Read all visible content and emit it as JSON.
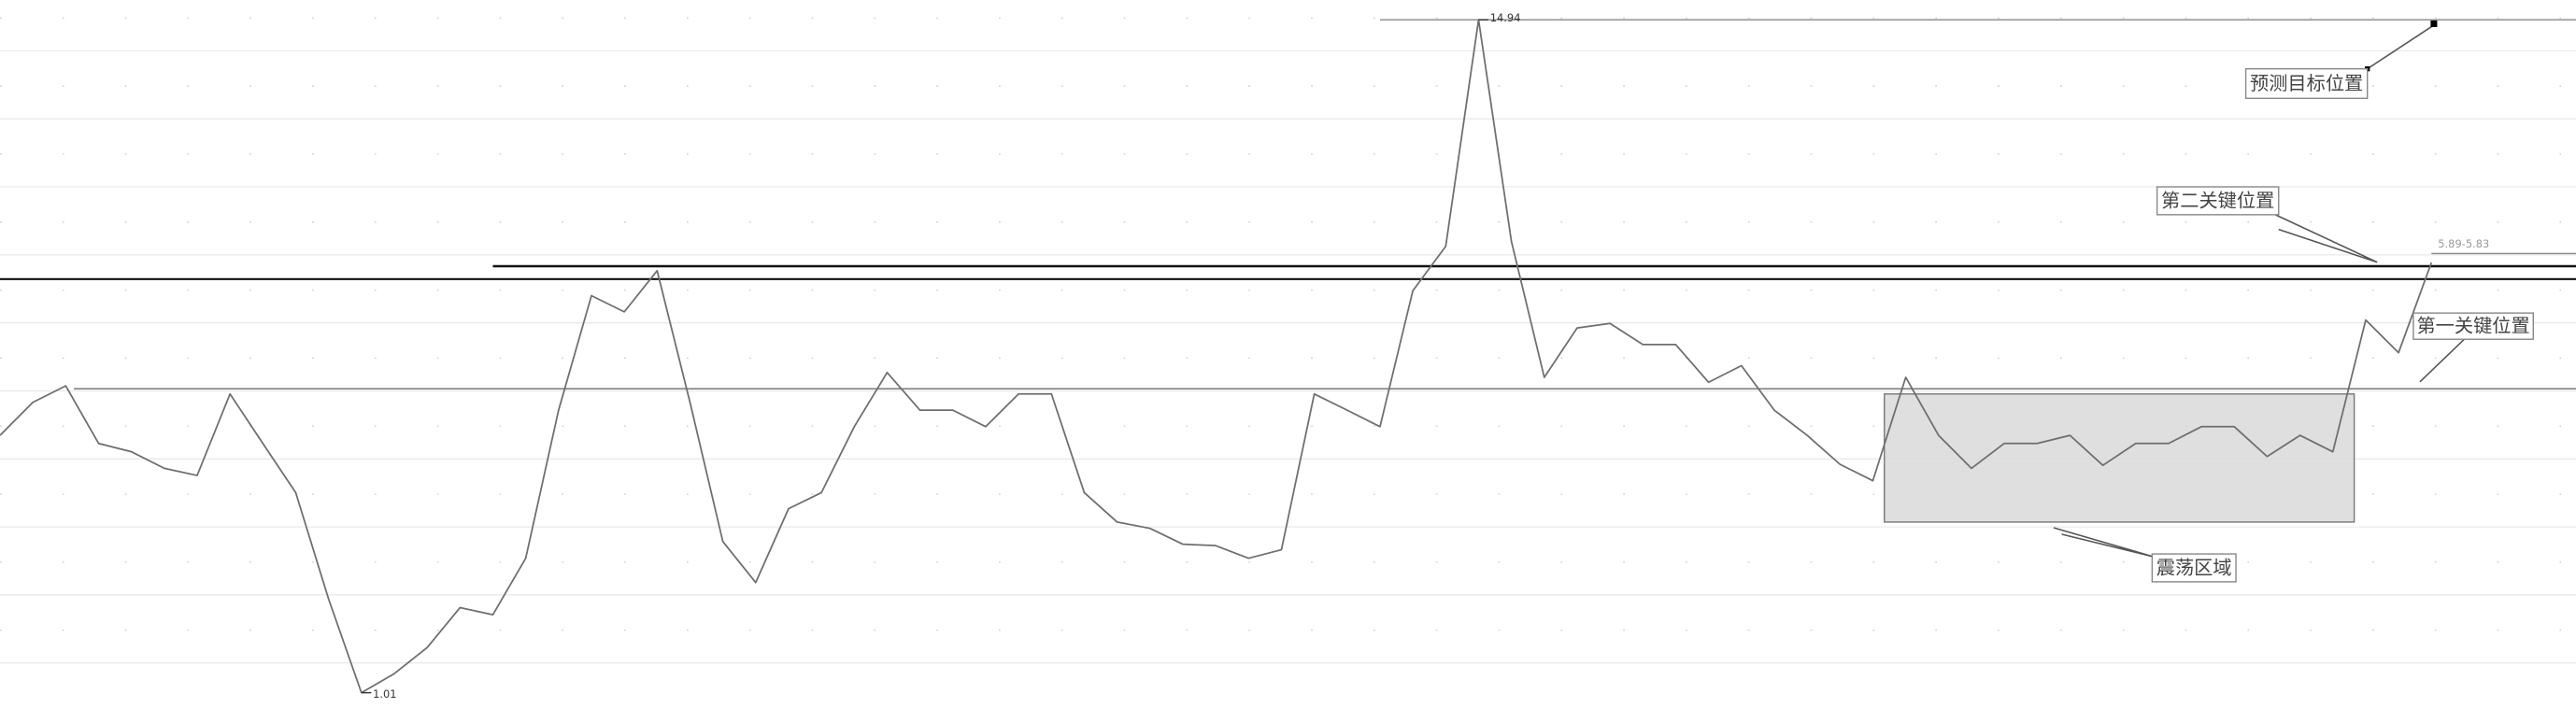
{
  "chart_data": {
    "type": "line",
    "log_scale": true,
    "grid": true,
    "color": "#6e6e6e",
    "ylim": [
      0.95,
      16.17
    ],
    "values": [
      2.83,
      3.23,
      3.45,
      2.74,
      2.65,
      2.48,
      2.41,
      3.34,
      2.74,
      2.25,
      1.47,
      1.01,
      1.09,
      1.21,
      1.42,
      1.38,
      1.73,
      3.13,
      4.95,
      4.64,
      5.47,
      3.23,
      1.85,
      1.57,
      2.11,
      2.25,
      2.93,
      3.64,
      3.13,
      3.13,
      2.93,
      3.34,
      3.34,
      2.25,
      2.0,
      1.95,
      1.83,
      1.82,
      1.73,
      1.79,
      3.34,
      3.13,
      2.93,
      5.05,
      6.03,
      14.94,
      6.15,
      3.57,
      4.35,
      4.43,
      4.07,
      4.07,
      3.5,
      3.74,
      3.13,
      2.83,
      2.52,
      2.36,
      3.57,
      2.83,
      2.48,
      2.74,
      2.74,
      2.83,
      2.51,
      2.74,
      2.74,
      2.93,
      2.93,
      2.6,
      2.83,
      2.65,
      4.49,
      3.94,
      5.65
    ],
    "levels": [
      14.94,
      5.57,
      5.29,
      3.41,
      5.86
    ],
    "zone": {
      "low": 2.0,
      "high": 3.34
    },
    "annotations": [
      "预测目标位置",
      "第二关键位置",
      "第一关键位置",
      "震荡区域",
      "5.89-5.83"
    ]
  }
}
